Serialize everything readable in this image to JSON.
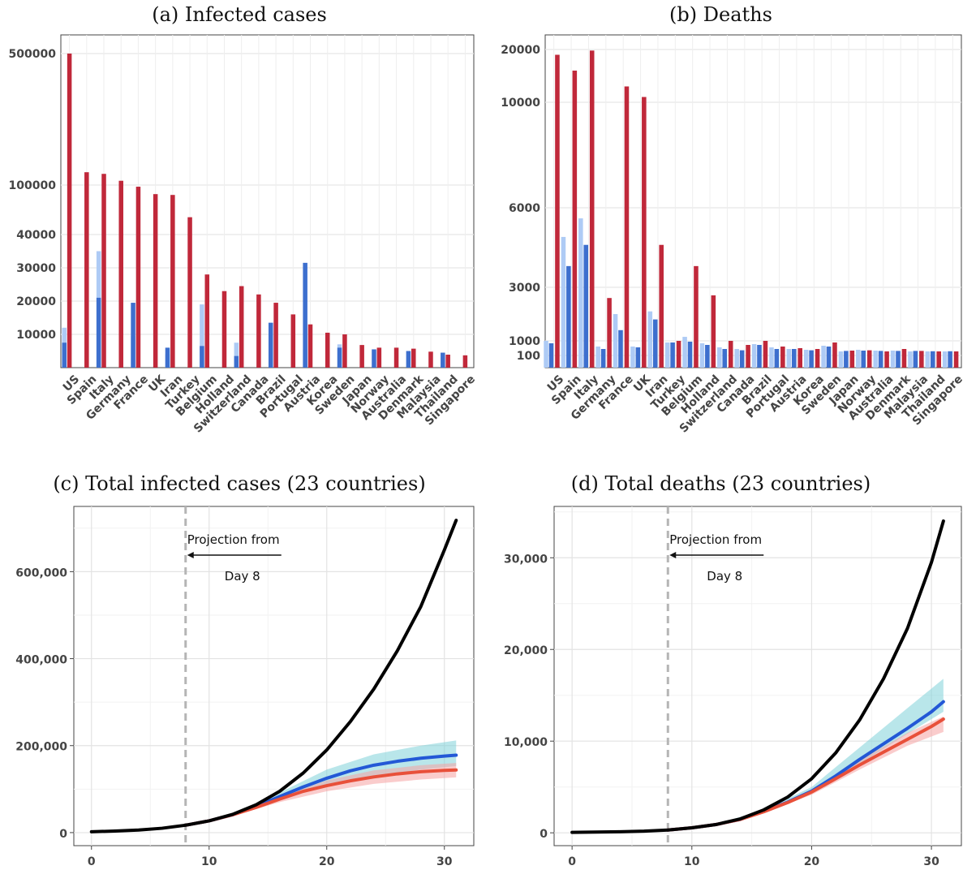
{
  "chart_data": [
    {
      "id": "a",
      "type": "bar",
      "title": "(a) Infected cases",
      "categories": [
        "US",
        "Spain",
        "Italy",
        "Germany",
        "France",
        "UK",
        "Iran",
        "Turkey",
        "Belgium",
        "Holland",
        "Switzerland",
        "Canada",
        "Brazil",
        "Portugal",
        "Austria",
        "Korea",
        "Sweden",
        "Japan",
        "Norway",
        "Australia",
        "Denmark",
        "Malaysia",
        "Thailand",
        "Singapore"
      ],
      "series": [
        {
          "color": "#aecbf5",
          "values": [
            12000,
            null,
            35000,
            null,
            9500,
            null,
            4000,
            null,
            19000,
            null,
            7500,
            null,
            6000,
            null,
            5500,
            null,
            7000,
            null,
            null,
            null,
            null,
            null,
            null,
            null
          ]
        },
        {
          "color": "#3d6fce",
          "values": [
            7500,
            null,
            21000,
            null,
            19500,
            null,
            6000,
            null,
            6500,
            null,
            3500,
            null,
            13500,
            null,
            31500,
            null,
            6000,
            null,
            5500,
            null,
            5000,
            null,
            4500,
            null
          ]
        },
        {
          "color": "#c0283a",
          "values": [
            500000,
            139000,
            134000,
            113000,
            98000,
            89000,
            88000,
            61000,
            28000,
            23000,
            24500,
            22000,
            19500,
            16000,
            13000,
            10500,
            10000,
            6800,
            6000,
            6000,
            5700,
            4800,
            3900,
            3700
          ]
        }
      ],
      "ytick_labels": [
        "10000",
        "20000",
        "30000",
        "40000",
        "100000",
        "500000"
      ],
      "grid": true
    },
    {
      "id": "b",
      "type": "bar",
      "title": "(b) Deaths",
      "categories": [
        "US",
        "Spain",
        "Italy",
        "Germany",
        "France",
        "UK",
        "Iran",
        "Turkey",
        "Belgium",
        "Holland",
        "Switzerland",
        "Canada",
        "Brazil",
        "Portugal",
        "Austria",
        "Korea",
        "Sweden",
        "Japan",
        "Norway",
        "Australia",
        "Denmark",
        "Malaysia",
        "Thailand",
        "Singapore"
      ],
      "series": [
        {
          "color": "#aecbf5",
          "values": [
            1000,
            4900,
            5600,
            650,
            2000,
            650,
            2100,
            900,
            1150,
            850,
            600,
            500,
            800,
            600,
            500,
            450,
            700,
            350,
            450,
            400,
            400,
            350,
            350,
            350
          ]
        },
        {
          "color": "#3d6fce",
          "values": [
            850,
            3800,
            4600,
            500,
            1400,
            600,
            1800,
            900,
            950,
            750,
            500,
            420,
            750,
            500,
            500,
            420,
            650,
            380,
            400,
            380,
            380,
            380,
            360,
            360
          ]
        },
        {
          "color": "#c0283a",
          "values": [
            19000,
            16000,
            19800,
            2600,
            13000,
            11000,
            4600,
            1000,
            3800,
            2700,
            1000,
            750,
            1000,
            650,
            550,
            500,
            900,
            400,
            420,
            350,
            500,
            380,
            350,
            350
          ]
        }
      ],
      "ytick_labels": [
        "100",
        "1000",
        "3000",
        "6000",
        "10000",
        "20000"
      ],
      "grid": true
    },
    {
      "id": "c",
      "type": "line",
      "title": "(c) Total infected cases (23 countries)",
      "xlim": [
        -1.5,
        32.5
      ],
      "ylim": [
        -30000,
        750000
      ],
      "xticks": [
        0,
        10,
        20,
        30
      ],
      "xtick_labels": [
        "0",
        "10",
        "20",
        "30"
      ],
      "yticks": [
        0,
        200000,
        400000,
        600000
      ],
      "ytick_labels": [
        "0",
        "200,000",
        "400,000",
        "600,000"
      ],
      "vline_x": 8,
      "annotation": [
        "Projection from",
        "Day 8"
      ],
      "series": [
        {
          "color": "#000000",
          "x": [
            0,
            2,
            4,
            6,
            8,
            10,
            12,
            14,
            16,
            18,
            20,
            22,
            24,
            26,
            28,
            30,
            31
          ],
          "y": [
            2000,
            3500,
            6000,
            10000,
            17000,
            27000,
            42000,
            64000,
            95000,
            137000,
            190000,
            255000,
            330000,
            418000,
            520000,
            650000,
            718000
          ]
        },
        {
          "color": "#2358d6",
          "x": [
            8,
            10,
            12,
            14,
            16,
            18,
            20,
            22,
            24,
            26,
            28,
            30,
            31
          ],
          "y": [
            17000,
            27000,
            41000,
            60000,
            83000,
            105000,
            125000,
            142000,
            155000,
            164000,
            171000,
            176000,
            178000
          ]
        },
        {
          "color": "#e8503a",
          "x": [
            8,
            10,
            12,
            14,
            16,
            18,
            20,
            22,
            24,
            26,
            28,
            30,
            31
          ],
          "y": [
            17000,
            27000,
            41000,
            58000,
            77000,
            95000,
            108000,
            119000,
            128000,
            135000,
            140000,
            143000,
            144000
          ]
        }
      ],
      "bands": [
        {
          "color": "#7fd1d8",
          "x": [
            8,
            12,
            16,
            20,
            24,
            28,
            31
          ],
          "lower": [
            17000,
            39000,
            75000,
            107000,
            130000,
            145000,
            153000
          ],
          "upper": [
            17000,
            43000,
            92000,
            145000,
            180000,
            200000,
            212000
          ]
        },
        {
          "color": "#f5a3a3",
          "x": [
            8,
            12,
            16,
            20,
            24,
            28,
            31
          ],
          "lower": [
            17000,
            38000,
            70000,
            95000,
            112000,
            122000,
            127000
          ],
          "upper": [
            17000,
            42000,
            82000,
            120000,
            143000,
            155000,
            160000
          ]
        }
      ]
    },
    {
      "id": "d",
      "type": "line",
      "title": "(d) Total deaths (23 countries)",
      "xlim": [
        -1.5,
        32.5
      ],
      "ylim": [
        -1400,
        35600
      ],
      "xticks": [
        0,
        10,
        20,
        30
      ],
      "xtick_labels": [
        "0",
        "10",
        "20",
        "30"
      ],
      "yticks": [
        0,
        10000,
        20000,
        30000
      ],
      "ytick_labels": [
        "0",
        "10,000",
        "20,000",
        "30,000"
      ],
      "vline_x": 8,
      "annotation": [
        "Projection from",
        "Day 8"
      ],
      "series": [
        {
          "color": "#000000",
          "x": [
            0,
            2,
            4,
            6,
            8,
            10,
            12,
            14,
            16,
            18,
            20,
            22,
            24,
            26,
            28,
            30,
            31
          ],
          "y": [
            50,
            80,
            120,
            180,
            300,
            550,
            900,
            1500,
            2500,
            3900,
            5900,
            8700,
            12300,
            16800,
            22300,
            29500,
            34000
          ]
        },
        {
          "color": "#2358d6",
          "x": [
            8,
            10,
            12,
            14,
            16,
            18,
            20,
            22,
            24,
            26,
            28,
            30,
            31
          ],
          "y": [
            300,
            550,
            900,
            1450,
            2350,
            3350,
            4550,
            6200,
            8000,
            9700,
            11400,
            13200,
            14300
          ]
        },
        {
          "color": "#e8503a",
          "x": [
            8,
            10,
            12,
            14,
            16,
            18,
            20,
            22,
            24,
            26,
            28,
            30,
            31
          ],
          "y": [
            300,
            550,
            900,
            1450,
            2300,
            3300,
            4450,
            5900,
            7400,
            8800,
            10200,
            11600,
            12400
          ]
        }
      ],
      "bands": [
        {
          "color": "#7fd1d8",
          "x": [
            8,
            12,
            16,
            20,
            24,
            28,
            31
          ],
          "lower": [
            300,
            880,
            2200,
            4300,
            7500,
            10800,
            13200
          ],
          "upper": [
            300,
            950,
            2500,
            5000,
            9300,
            13600,
            16800
          ]
        },
        {
          "color": "#f5a3a3",
          "x": [
            8,
            12,
            16,
            20,
            24,
            28,
            31
          ],
          "lower": [
            300,
            860,
            2150,
            4150,
            6900,
            9500,
            11000
          ],
          "upper": [
            300,
            920,
            2400,
            4700,
            7900,
            10900,
            12700
          ]
        }
      ]
    }
  ]
}
